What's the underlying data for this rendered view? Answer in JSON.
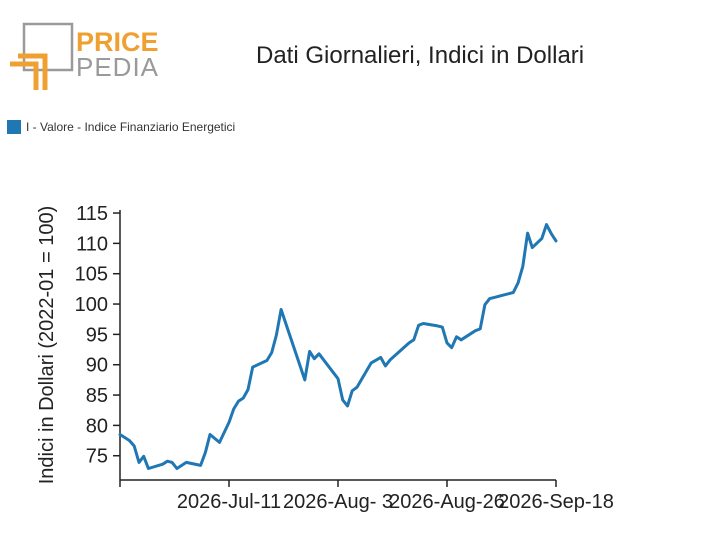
{
  "brand": {
    "line1": "PRICE",
    "line2": "PEDIA"
  },
  "colors": {
    "line": "#1f77b4",
    "logo_orange": "#f0a030",
    "logo_gray": "#9a9a9a",
    "axis": "#222222"
  },
  "chart_data": {
    "type": "line",
    "title": "Dati Giornalieri, Indici in Dollari",
    "ylabel": "Indici in Dollari (2022-01 = 100)",
    "xlabel": "",
    "ylim": [
      71,
      115.5
    ],
    "yticks": [
      75,
      80,
      85,
      90,
      95,
      100,
      105,
      110,
      115
    ],
    "xlim": [
      "2026-06-18",
      "2026-09-18"
    ],
    "xticks": [
      {
        "date": "2026-07-11",
        "label": "2026-Jul-11"
      },
      {
        "date": "2026-08-03",
        "label": "2026-Aug- 3"
      },
      {
        "date": "2026-08-26",
        "label": "2026-Aug-26"
      },
      {
        "date": "2026-09-18",
        "label": "2026-Sep-18"
      }
    ],
    "grid": false,
    "legend": "top-left",
    "series": [
      {
        "name": "I - Valore - Indice Finanziario Energetici",
        "points": [
          [
            "2026-06-18",
            78.5
          ],
          [
            "2026-06-19",
            78.0
          ],
          [
            "2026-06-20",
            77.5
          ],
          [
            "2026-06-21",
            76.6
          ],
          [
            "2026-06-22",
            73.9
          ],
          [
            "2026-06-23",
            74.9
          ],
          [
            "2026-06-24",
            72.9
          ],
          [
            "2026-06-27",
            73.6
          ],
          [
            "2026-06-28",
            74.1
          ],
          [
            "2026-06-29",
            73.9
          ],
          [
            "2026-06-30",
            72.9
          ],
          [
            "2026-07-02",
            73.9
          ],
          [
            "2026-07-05",
            73.4
          ],
          [
            "2026-07-06",
            75.5
          ],
          [
            "2026-07-07",
            78.5
          ],
          [
            "2026-07-09",
            77.2
          ],
          [
            "2026-07-11",
            80.5
          ],
          [
            "2026-07-12",
            82.7
          ],
          [
            "2026-07-13",
            84.0
          ],
          [
            "2026-07-14",
            84.5
          ],
          [
            "2026-07-15",
            85.9
          ],
          [
            "2026-07-16",
            89.6
          ],
          [
            "2026-07-19",
            90.7
          ],
          [
            "2026-07-20",
            92.0
          ],
          [
            "2026-07-21",
            94.9
          ],
          [
            "2026-07-22",
            99.1
          ],
          [
            "2026-07-27",
            87.5
          ],
          [
            "2026-07-28",
            92.2
          ],
          [
            "2026-07-29",
            91.0
          ],
          [
            "2026-07-30",
            91.8
          ],
          [
            "2026-08-03",
            87.7
          ],
          [
            "2026-08-04",
            84.2
          ],
          [
            "2026-08-05",
            83.2
          ],
          [
            "2026-08-06",
            85.7
          ],
          [
            "2026-08-07",
            86.3
          ],
          [
            "2026-08-10",
            90.3
          ],
          [
            "2026-08-12",
            91.2
          ],
          [
            "2026-08-13",
            89.8
          ],
          [
            "2026-08-14",
            90.8
          ],
          [
            "2026-08-18",
            93.6
          ],
          [
            "2026-08-19",
            94.1
          ],
          [
            "2026-08-20",
            96.5
          ],
          [
            "2026-08-21",
            96.8
          ],
          [
            "2026-08-24",
            96.4
          ],
          [
            "2026-08-25",
            96.2
          ],
          [
            "2026-08-26",
            93.6
          ],
          [
            "2026-08-27",
            92.8
          ],
          [
            "2026-08-28",
            94.6
          ],
          [
            "2026-08-29",
            94.1
          ],
          [
            "2026-09-01",
            95.6
          ],
          [
            "2026-09-02",
            95.9
          ],
          [
            "2026-09-03",
            99.9
          ],
          [
            "2026-09-04",
            100.9
          ],
          [
            "2026-09-05",
            101.1
          ],
          [
            "2026-09-06",
            101.3
          ],
          [
            "2026-09-09",
            101.9
          ],
          [
            "2026-09-10",
            103.5
          ],
          [
            "2026-09-11",
            106.2
          ],
          [
            "2026-09-12",
            111.7
          ],
          [
            "2026-09-13",
            109.3
          ],
          [
            "2026-09-15",
            110.8
          ],
          [
            "2026-09-16",
            113.1
          ],
          [
            "2026-09-17",
            111.6
          ],
          [
            "2026-09-18",
            110.4
          ]
        ]
      }
    ]
  }
}
